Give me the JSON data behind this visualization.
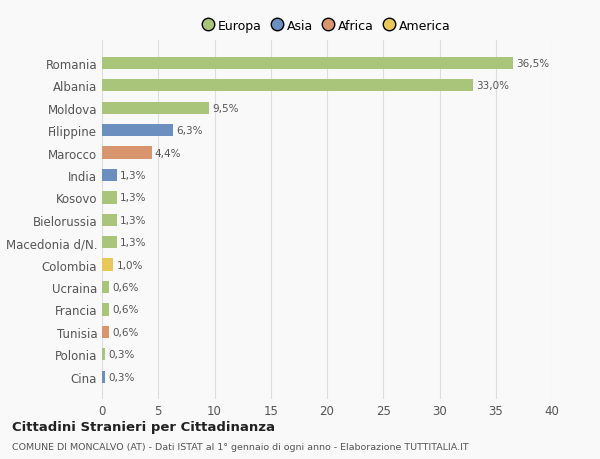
{
  "countries": [
    "Romania",
    "Albania",
    "Moldova",
    "Filippine",
    "Marocco",
    "India",
    "Kosovo",
    "Bielorussia",
    "Macedonia d/N.",
    "Colombia",
    "Ucraina",
    "Francia",
    "Tunisia",
    "Polonia",
    "Cina"
  ],
  "values": [
    36.5,
    33.0,
    9.5,
    6.3,
    4.4,
    1.3,
    1.3,
    1.3,
    1.3,
    1.0,
    0.6,
    0.6,
    0.6,
    0.3,
    0.3
  ],
  "labels": [
    "36,5%",
    "33,0%",
    "9,5%",
    "6,3%",
    "4,4%",
    "1,3%",
    "1,3%",
    "1,3%",
    "1,3%",
    "1,0%",
    "0,6%",
    "0,6%",
    "0,6%",
    "0,3%",
    "0,3%"
  ],
  "colors": [
    "#a8c57a",
    "#a8c57a",
    "#a8c57a",
    "#6b8fbf",
    "#d9956e",
    "#6b8fbf",
    "#a8c57a",
    "#a8c57a",
    "#a8c57a",
    "#e8c85a",
    "#a8c57a",
    "#a8c57a",
    "#d9956e",
    "#a8c57a",
    "#6b8fbf"
  ],
  "legend_labels": [
    "Europa",
    "Asia",
    "Africa",
    "America"
  ],
  "legend_colors": [
    "#a8c57a",
    "#6b8fbf",
    "#d9956e",
    "#e8c85a"
  ],
  "title": "Cittadini Stranieri per Cittadinanza",
  "subtitle": "COMUNE DI MONCALVO (AT) - Dati ISTAT al 1° gennaio di ogni anno - Elaborazione TUTTITALIA.IT",
  "xlim": [
    0,
    40
  ],
  "xticks": [
    0,
    5,
    10,
    15,
    20,
    25,
    30,
    35,
    40
  ],
  "bg_color": "#f9f9f9",
  "grid_color": "#dddddd",
  "bar_height": 0.55
}
